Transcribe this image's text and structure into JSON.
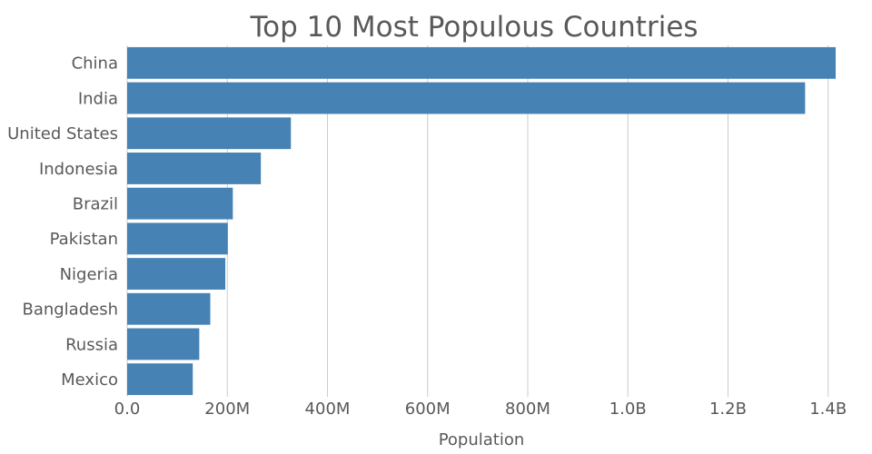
{
  "chart_data": {
    "type": "bar",
    "orientation": "horizontal",
    "title": "Top 10 Most Populous Countries",
    "xlabel": "Population",
    "ylabel": "",
    "categories": [
      "China",
      "India",
      "United States",
      "Indonesia",
      "Brazil",
      "Pakistan",
      "Nigeria",
      "Bangladesh",
      "Russia",
      "Mexico"
    ],
    "values": [
      1415000000,
      1354000000,
      327000000,
      267000000,
      211000000,
      201000000,
      196000000,
      166000000,
      144000000,
      131000000
    ],
    "xlim": [
      0,
      1415000000
    ],
    "x_ticks": [
      0,
      200000000,
      400000000,
      600000000,
      800000000,
      1000000000,
      1200000000,
      1400000000
    ],
    "x_tick_labels": [
      "0.0",
      "200M",
      "400M",
      "600M",
      "800M",
      "1.0B",
      "1.2B",
      "1.4B"
    ],
    "grid": "vertical",
    "bar_color": "#4682b4"
  }
}
